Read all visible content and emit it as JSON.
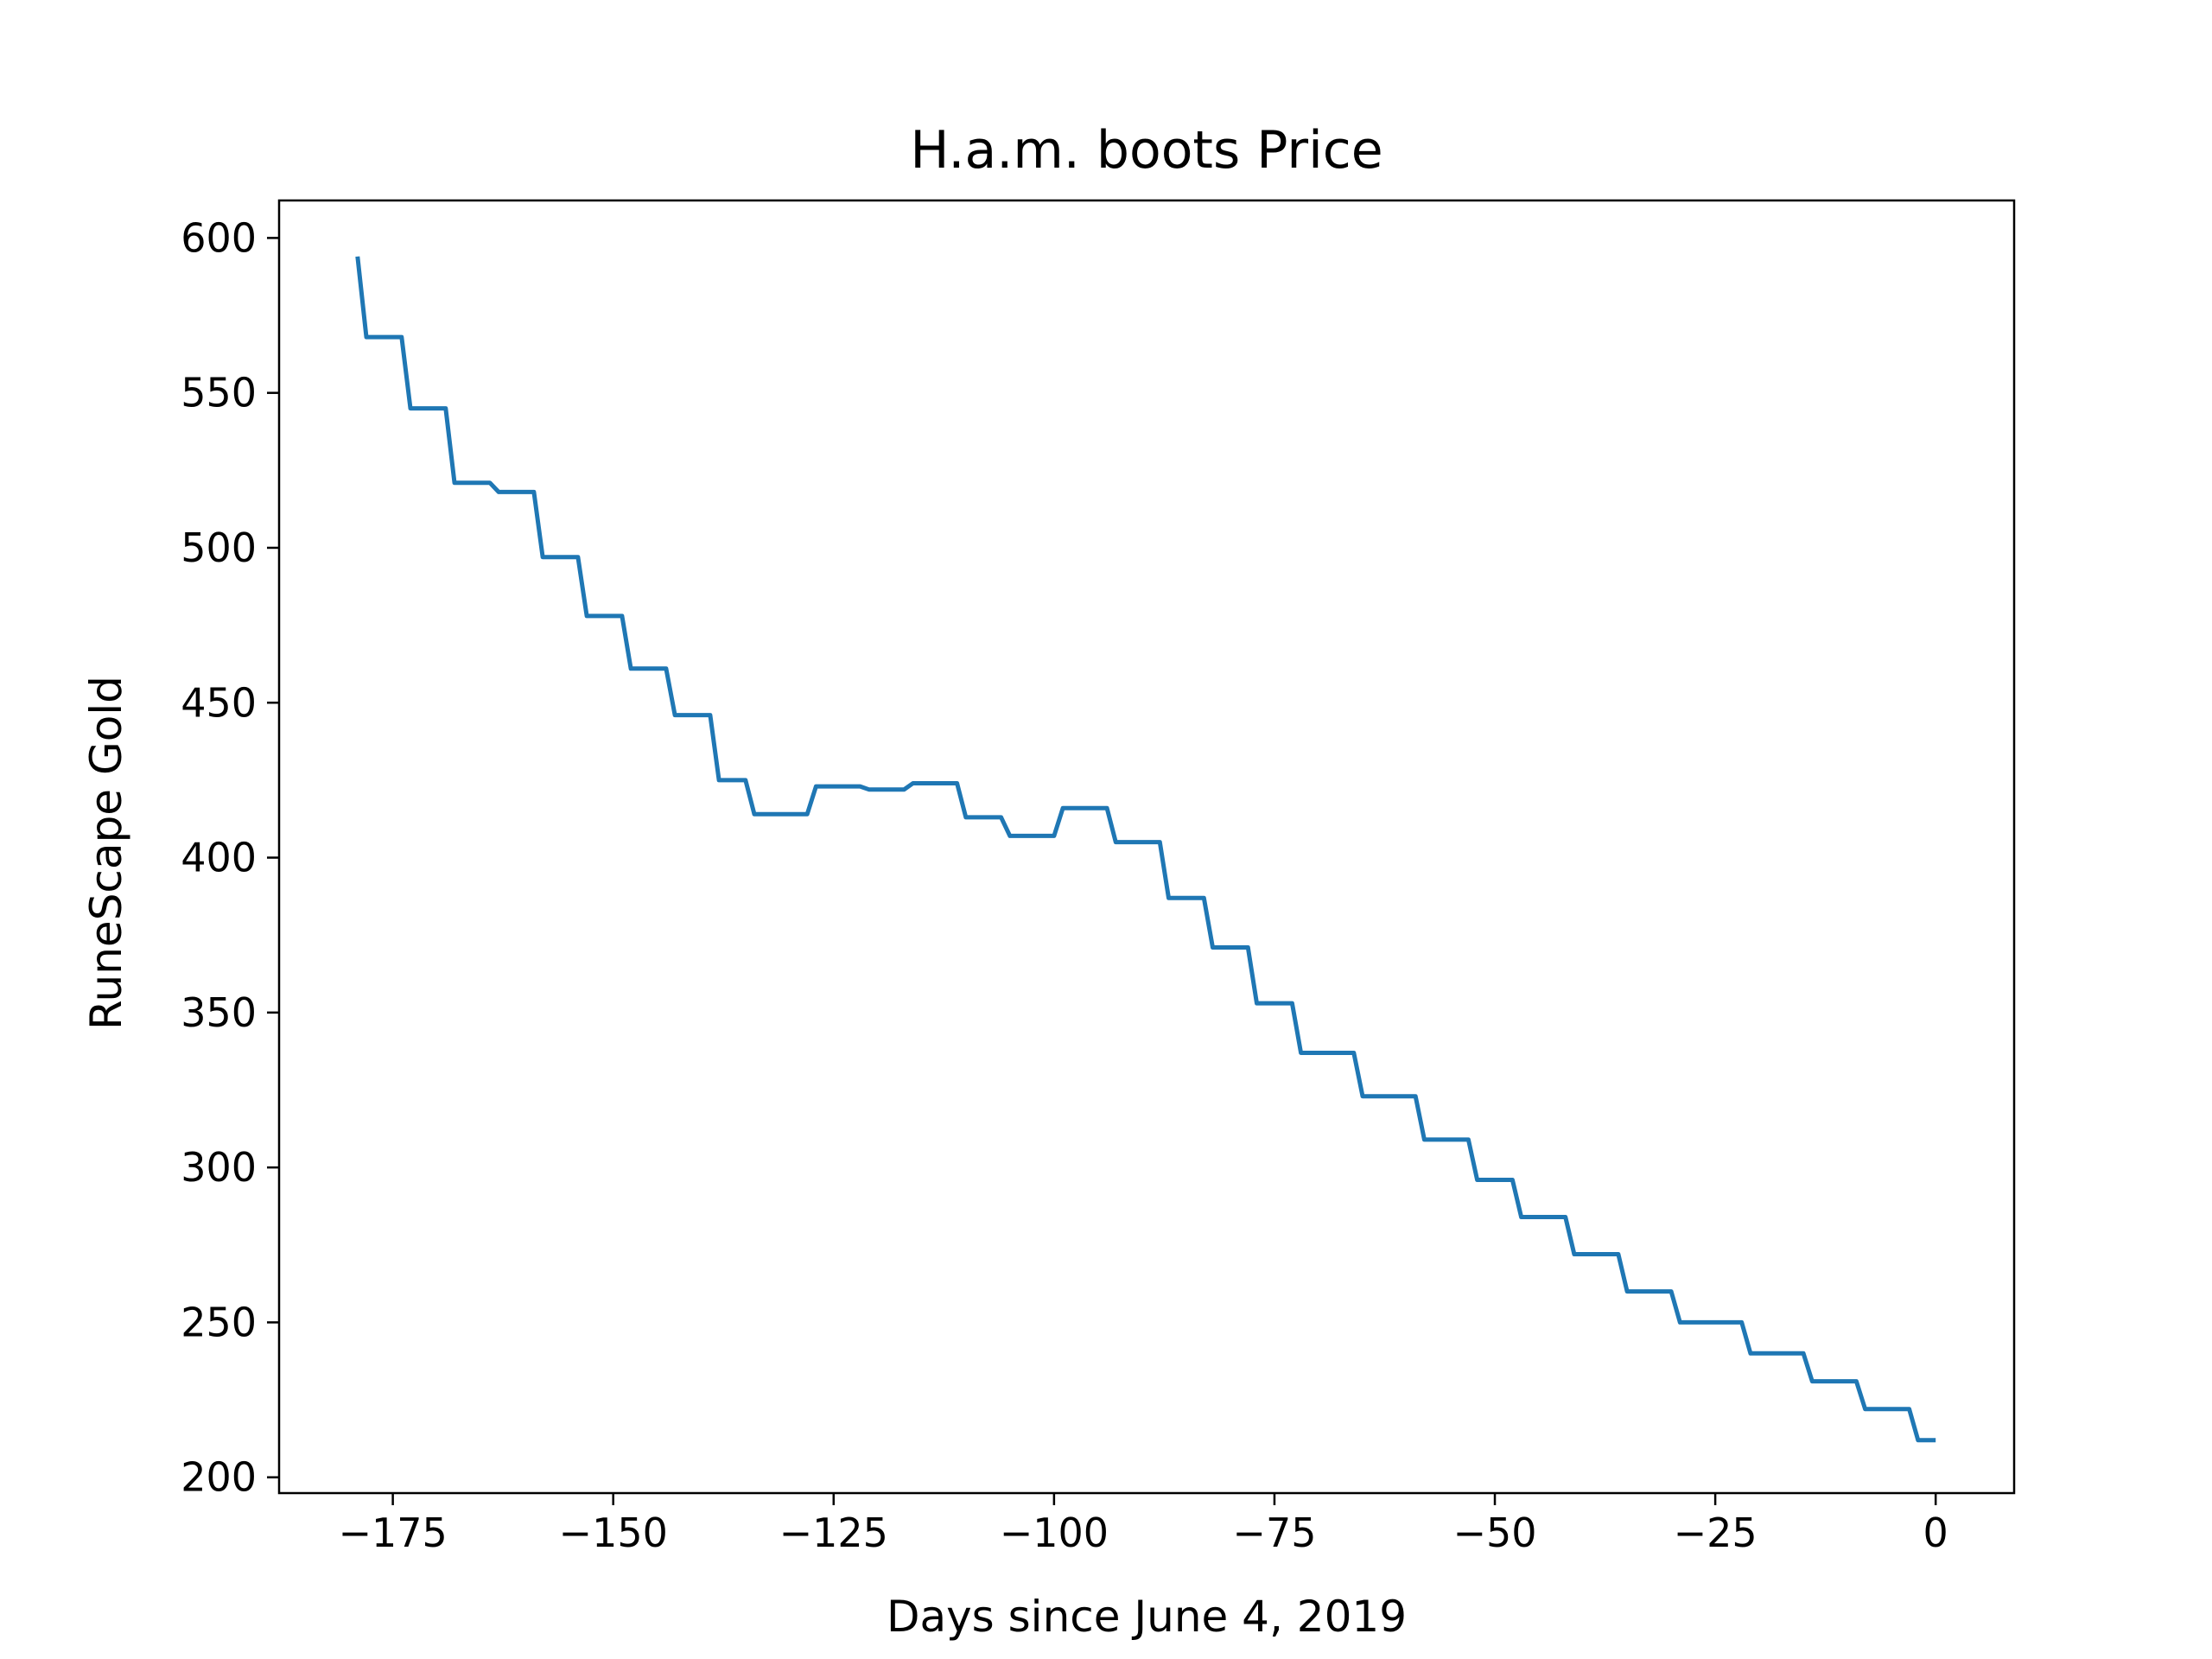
{
  "chart_data": {
    "type": "line",
    "title": "H.a.m. boots Price",
    "xlabel": "Days since June 4, 2019",
    "ylabel": "RuneScape Gold",
    "xlim": [
      -187.9,
      8.9
    ],
    "ylim": [
      194.9,
      612.1
    ],
    "grid": false,
    "line_color": "#1f77b4",
    "x_ticks": [
      -175,
      -150,
      -125,
      -100,
      -75,
      -50,
      -25,
      0
    ],
    "x_tick_labels": [
      "−175",
      "−150",
      "−125",
      "−100",
      "−75",
      "−50",
      "−25",
      "0"
    ],
    "y_ticks": [
      200,
      250,
      300,
      350,
      400,
      450,
      500,
      550,
      600
    ],
    "y_tick_labels": [
      "200",
      "250",
      "300",
      "350",
      "400",
      "450",
      "500",
      "550",
      "600"
    ],
    "series": [
      {
        "x": [
          -179,
          -178,
          -174,
          -173,
          -169,
          -168,
          -164,
          -163,
          -159,
          -158,
          -154,
          -153,
          -149,
          -148,
          -144,
          -143,
          -139,
          -138,
          -135,
          -134,
          -128,
          -127,
          -122,
          -121,
          -117,
          -116,
          -111,
          -110,
          -106,
          -105,
          -100,
          -99,
          -94,
          -93,
          -88,
          -87,
          -83,
          -82,
          -78,
          -77,
          -73,
          -72,
          -66,
          -65,
          -59,
          -58,
          -53,
          -52,
          -48,
          -47,
          -42,
          -41,
          -36,
          -35,
          -30,
          -29,
          -22,
          -21,
          -15,
          -14,
          -9,
          -8,
          -3,
          -2,
          0
        ],
        "y": [
          594,
          568,
          568,
          545,
          545,
          521,
          521,
          518,
          518,
          497,
          497,
          478,
          478,
          461,
          461,
          446,
          446,
          425,
          425,
          414,
          414,
          423,
          423,
          422,
          422,
          424,
          424,
          413,
          413,
          407,
          407,
          416,
          416,
          405,
          405,
          387,
          387,
          371,
          371,
          353,
          353,
          337,
          337,
          323,
          323,
          309,
          309,
          296,
          296,
          284,
          284,
          272,
          272,
          260,
          260,
          250,
          250,
          240,
          240,
          231,
          231,
          222,
          222,
          212,
          212
        ]
      }
    ]
  }
}
